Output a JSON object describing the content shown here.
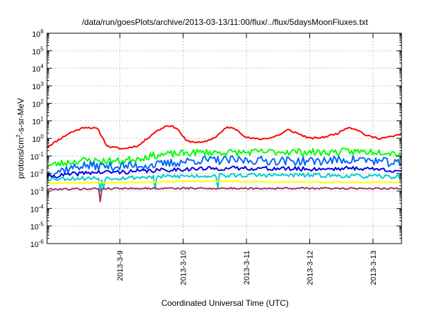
{
  "chart_data": {
    "type": "line",
    "title": "/data/run/goesPlots/archive/2013-03-13/11:00/flux/../flux/5daysMoonFluxes.txt",
    "xlabel": "Coordinated Universal Time (UTC)",
    "ylabel": {
      "pre": "protons/cm",
      "sup": "2",
      "post": "-s-sr-MeV"
    },
    "yscale": "log",
    "ylim_exp": [
      -6,
      6
    ],
    "ytick_exps": [
      -6,
      -5,
      -4,
      -3,
      -2,
      -1,
      0,
      1,
      2,
      3,
      4,
      5,
      6
    ],
    "ytick_base": "10",
    "xlim_days": [
      -1.15,
      4.45
    ],
    "xticks": [
      {
        "day": 0,
        "label": "2013-3-9"
      },
      {
        "day": 1,
        "label": "2013-3-10"
      },
      {
        "day": 2,
        "label": "2013-3-11"
      },
      {
        "day": 3,
        "label": "2013-3-12"
      },
      {
        "day": 4,
        "label": "2013-3-13"
      }
    ],
    "grid": true,
    "series": [
      {
        "color": "#ff0000",
        "width": 2,
        "base": [
          [
            -1.15,
            -0.5
          ],
          [
            -1.0,
            -0.15
          ],
          [
            -0.8,
            0.3
          ],
          [
            -0.55,
            0.65
          ],
          [
            -0.35,
            0.55
          ],
          [
            -0.2,
            -0.45
          ],
          [
            0.05,
            -0.6
          ],
          [
            0.3,
            -0.4
          ],
          [
            0.55,
            0.35
          ],
          [
            0.75,
            0.75
          ],
          [
            0.9,
            0.6
          ],
          [
            1.05,
            -0.15
          ],
          [
            1.3,
            -0.25
          ],
          [
            1.5,
            0.05
          ],
          [
            1.7,
            0.65
          ],
          [
            1.85,
            0.5
          ],
          [
            2.0,
            0.05
          ],
          [
            2.2,
            -0.05
          ],
          [
            2.4,
            0.05
          ],
          [
            2.55,
            0.25
          ],
          [
            2.65,
            0.5
          ],
          [
            2.8,
            0.3
          ],
          [
            3.0,
            0.0
          ],
          [
            3.2,
            0.05
          ],
          [
            3.45,
            0.3
          ],
          [
            3.6,
            0.65
          ],
          [
            3.75,
            0.5
          ],
          [
            3.9,
            0.15
          ],
          [
            4.1,
            0.0
          ],
          [
            4.3,
            0.1
          ],
          [
            4.45,
            0.25
          ]
        ],
        "noise": 0.05,
        "seed": 11
      },
      {
        "color": "#00ff00",
        "width": 2,
        "base": [
          [
            -1.15,
            -1.55
          ],
          [
            -0.6,
            -1.25
          ],
          [
            0.0,
            -1.3
          ],
          [
            0.6,
            -0.95
          ],
          [
            1.2,
            -0.8
          ],
          [
            2.0,
            -0.8
          ],
          [
            2.6,
            -0.75
          ],
          [
            3.2,
            -0.8
          ],
          [
            3.6,
            -0.75
          ],
          [
            4.2,
            -0.75
          ],
          [
            4.45,
            -0.9
          ]
        ],
        "noise": 0.2,
        "seed": 23
      },
      {
        "color": "#0066ff",
        "width": 2,
        "base": [
          [
            -1.15,
            -2.0
          ],
          [
            -0.6,
            -1.55
          ],
          [
            0.0,
            -1.6
          ],
          [
            0.6,
            -1.5
          ],
          [
            1.2,
            -1.25
          ],
          [
            2.0,
            -1.25
          ],
          [
            3.0,
            -1.3
          ],
          [
            3.8,
            -1.2
          ],
          [
            4.45,
            -1.45
          ]
        ],
        "noise": 0.25,
        "seed": 37
      },
      {
        "color": "#0000dd",
        "width": 2,
        "base": [
          [
            -1.15,
            -2.2
          ],
          [
            -0.5,
            -1.95
          ],
          [
            0.2,
            -1.9
          ],
          [
            1.0,
            -1.75
          ],
          [
            2.0,
            -1.7
          ],
          [
            3.0,
            -1.75
          ],
          [
            3.8,
            -1.7
          ],
          [
            4.45,
            -1.85
          ]
        ],
        "noise": 0.12,
        "seed": 41
      },
      {
        "color": "#00cccc",
        "width": 2,
        "base": [
          [
            -1.15,
            -2.3
          ],
          [
            0.0,
            -2.25
          ],
          [
            1.0,
            -2.15
          ],
          [
            2.0,
            -2.1
          ],
          [
            3.0,
            -2.1
          ],
          [
            4.45,
            -2.2
          ]
        ],
        "noise": 0.12,
        "seed": 53,
        "dips": [
          [
            -0.3,
            -3.0
          ],
          [
            -0.25,
            -2.9
          ],
          [
            0.55,
            -2.9
          ],
          [
            1.55,
            -2.85
          ]
        ]
      },
      {
        "color": "#ffff00",
        "width": 2,
        "base": [
          [
            -1.15,
            -2.55
          ],
          [
            0.0,
            -2.5
          ],
          [
            1.5,
            -2.45
          ],
          [
            3.0,
            -2.5
          ],
          [
            4.45,
            -2.5
          ]
        ],
        "noise": 0.04,
        "seed": 67
      },
      {
        "color": "#993366",
        "width": 2,
        "base": [
          [
            -1.15,
            -2.9
          ],
          [
            0.0,
            -2.85
          ],
          [
            2.0,
            -2.85
          ],
          [
            4.45,
            -2.85
          ]
        ],
        "noise": 0.05,
        "seed": 79,
        "dips": [
          [
            -0.3,
            -3.6
          ]
        ]
      }
    ]
  }
}
